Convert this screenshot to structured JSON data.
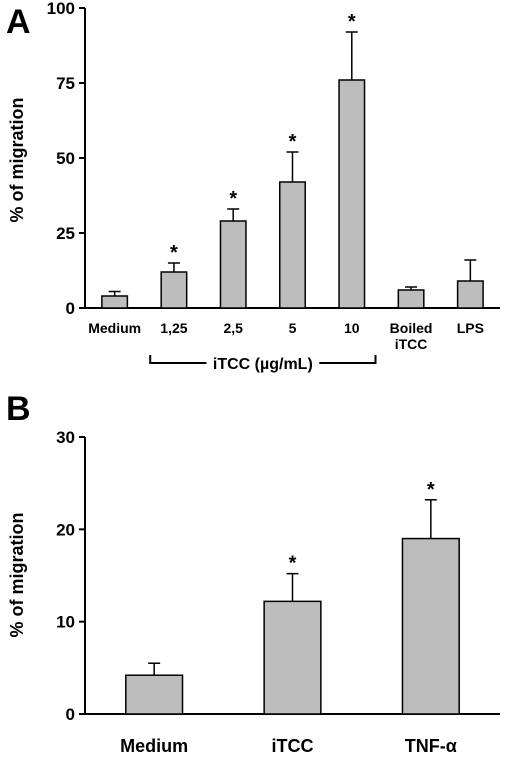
{
  "chart_data": [
    {
      "type": "bar",
      "panel": "A",
      "ylabel": "% of migration",
      "ylim": [
        0,
        100
      ],
      "yticks": [
        "0",
        "25",
        "50",
        "75",
        "100"
      ],
      "categories": [
        "Medium",
        "1,25",
        "2,5",
        "5",
        "10",
        "Boiled\niTCC",
        "LPS"
      ],
      "values": [
        4,
        12,
        29,
        42,
        76,
        6,
        9
      ],
      "errors": [
        1.5,
        3,
        4,
        10,
        16,
        1,
        7
      ],
      "significant": [
        false,
        true,
        true,
        true,
        true,
        false,
        false
      ],
      "star_symbol": "*",
      "group_label": "iTCC (µg/mL)",
      "group_span": [
        1,
        4
      ]
    },
    {
      "type": "bar",
      "panel": "B",
      "ylabel": "% of migration",
      "ylim": [
        0,
        30
      ],
      "yticks": [
        "0",
        "10",
        "20",
        "30"
      ],
      "categories": [
        "Medium",
        "iTCC",
        "TNF-α"
      ],
      "values": [
        4.2,
        12.2,
        19
      ],
      "errors": [
        1.3,
        3,
        4.2
      ],
      "significant": [
        false,
        true,
        true
      ],
      "star_symbol": "*"
    }
  ]
}
